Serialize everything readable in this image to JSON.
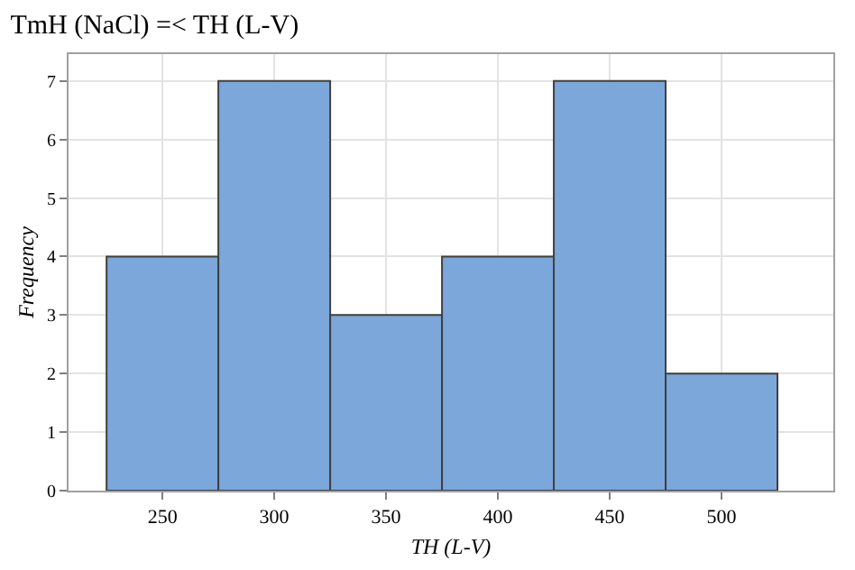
{
  "chart_data": {
    "type": "histogram",
    "title": "TmH (NaCl) =< TH (L-V)",
    "xlabel": "TH (L-V)",
    "ylabel": "Frequency",
    "bins": [
      225,
      275,
      325,
      375,
      425,
      475,
      525
    ],
    "values": [
      4,
      7,
      3,
      4,
      7,
      2
    ],
    "color": "#7ba7db",
    "xlim": [
      208,
      550
    ],
    "xticks": [
      250,
      300,
      350,
      400,
      450,
      500
    ],
    "ylim": [
      0,
      7.46
    ],
    "yticks": [
      0,
      1,
      2,
      3,
      4,
      5,
      6,
      7
    ],
    "grid": true
  }
}
